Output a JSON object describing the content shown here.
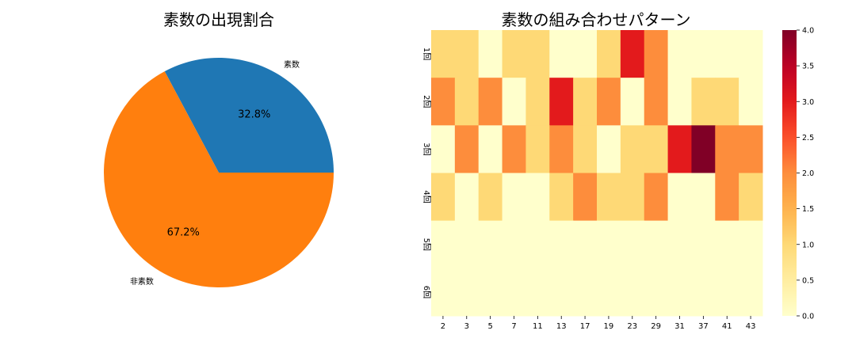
{
  "chart_data": [
    {
      "type": "pie",
      "title": "素数の出現割合",
      "labels": [
        "素数",
        "非素数"
      ],
      "values": [
        32.8,
        67.2
      ],
      "autopct": [
        "32.8%",
        "67.2%"
      ],
      "colors": [
        "#1f77b4",
        "#ff7f0e"
      ]
    },
    {
      "type": "heatmap",
      "title": "素数の組み合わせパターン",
      "x": [
        "2",
        "3",
        "5",
        "7",
        "11",
        "13",
        "17",
        "19",
        "23",
        "29",
        "31",
        "37",
        "41",
        "43"
      ],
      "y": [
        "1回",
        "2回",
        "3回",
        "4回",
        "5回",
        "6回"
      ],
      "values": [
        [
          1,
          1,
          0,
          1,
          1,
          0,
          0,
          1,
          3,
          2,
          0,
          0,
          0,
          0
        ],
        [
          2,
          1,
          2,
          0,
          1,
          3,
          1,
          2,
          0,
          2,
          0,
          1,
          1,
          0
        ],
        [
          0,
          2,
          0,
          2,
          1,
          2,
          1,
          0,
          1,
          1,
          3,
          4,
          2,
          2
        ],
        [
          1,
          0,
          1,
          0,
          0,
          1,
          2,
          1,
          1,
          2,
          0,
          0,
          2,
          1
        ],
        [
          0,
          0,
          0,
          0,
          0,
          0,
          0,
          0,
          0,
          0,
          0,
          0,
          0,
          0
        ],
        [
          0,
          0,
          0,
          0,
          0,
          0,
          0,
          0,
          0,
          0,
          0,
          0,
          0,
          0
        ]
      ],
      "colormap": "YlOrRd",
      "vmin": 0,
      "vmax": 4,
      "colorbar_ticks": [
        "0.0",
        "0.5",
        "1.0",
        "1.5",
        "2.0",
        "2.5",
        "3.0",
        "3.5",
        "4.0"
      ]
    }
  ]
}
